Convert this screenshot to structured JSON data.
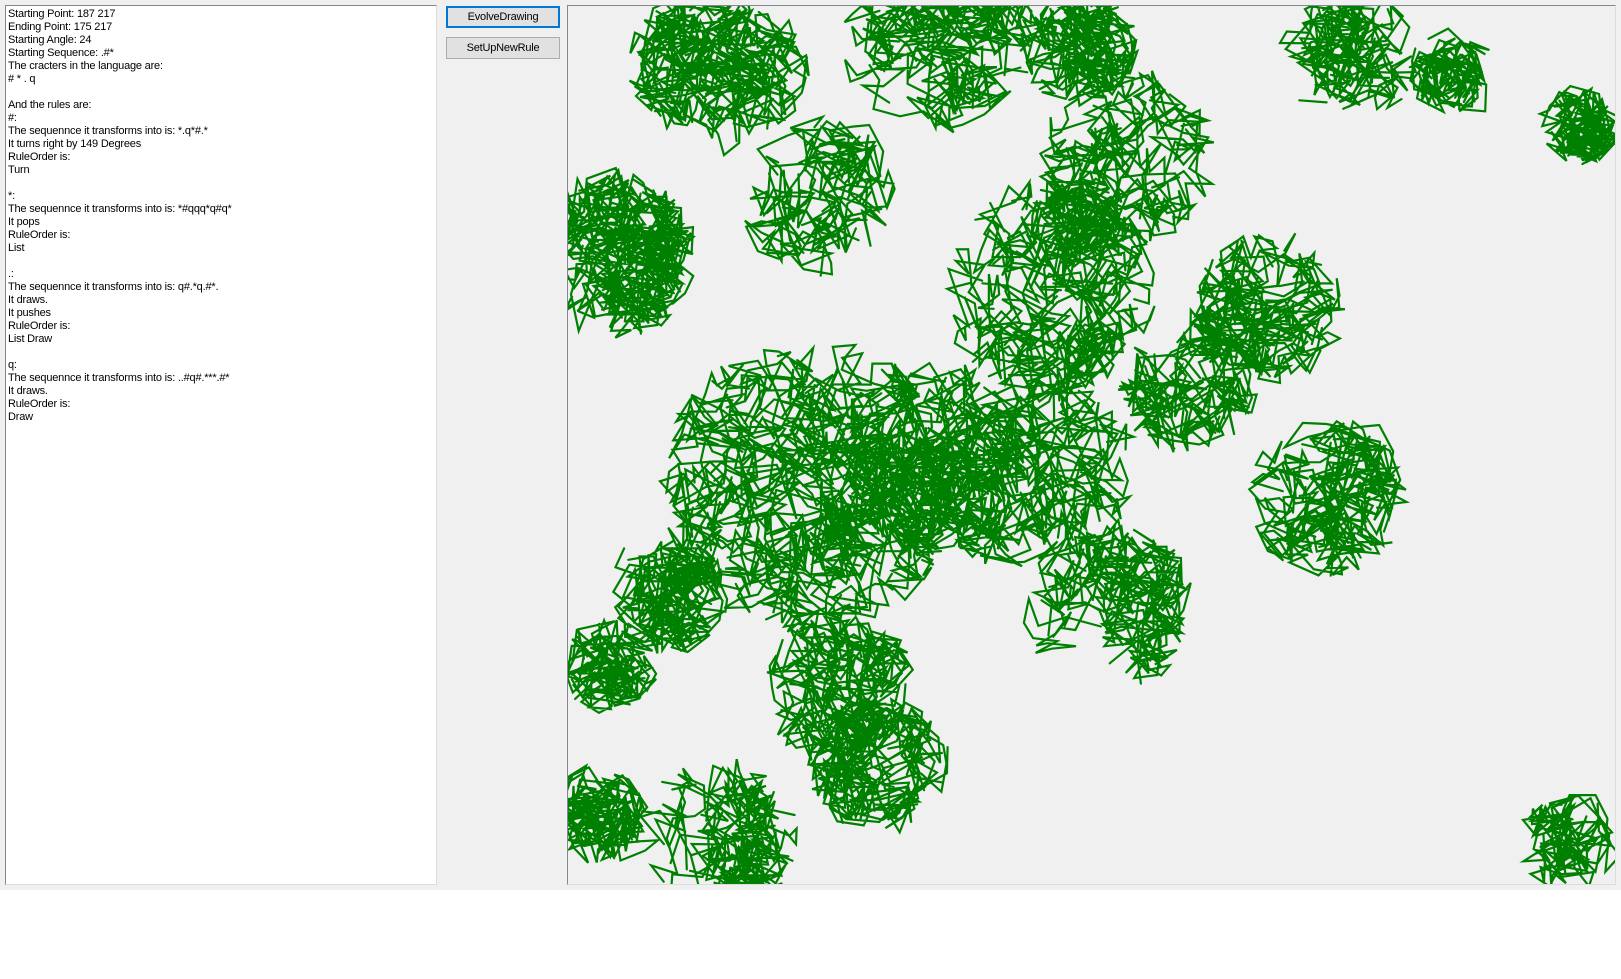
{
  "info": {
    "lines": [
      "Starting Point: 187 217",
      "Ending Point: 175 217",
      "Starting Angle: 24",
      "Starting Sequence: .#*",
      "The cracters in the language are:",
      "# * . q",
      "",
      "And the rules are:",
      "#:",
      "The sequennce it transforms into is: *.q*#.*",
      "It turns right by 149 Degrees",
      "RuleOrder is:",
      "Turn",
      "",
      "*:",
      "The sequennce it transforms into is: *#qqq*q#q*",
      "It pops",
      "RuleOrder is:",
      "List",
      "",
      ".:",
      "The sequennce it transforms into is: q#.*q.#*.",
      "It draws.",
      "It pushes",
      "RuleOrder is:",
      "List Draw",
      "",
      "q:",
      "The sequennce it transforms into is: ..#q#.***.#*",
      "It draws.",
      "RuleOrder is:",
      "Draw"
    ]
  },
  "buttons": {
    "evolve": "EvolveDrawing",
    "setup": "SetUpNewRule"
  },
  "drawing": {
    "stroke_color": "#008000",
    "background_color": "#f0f0f0"
  }
}
